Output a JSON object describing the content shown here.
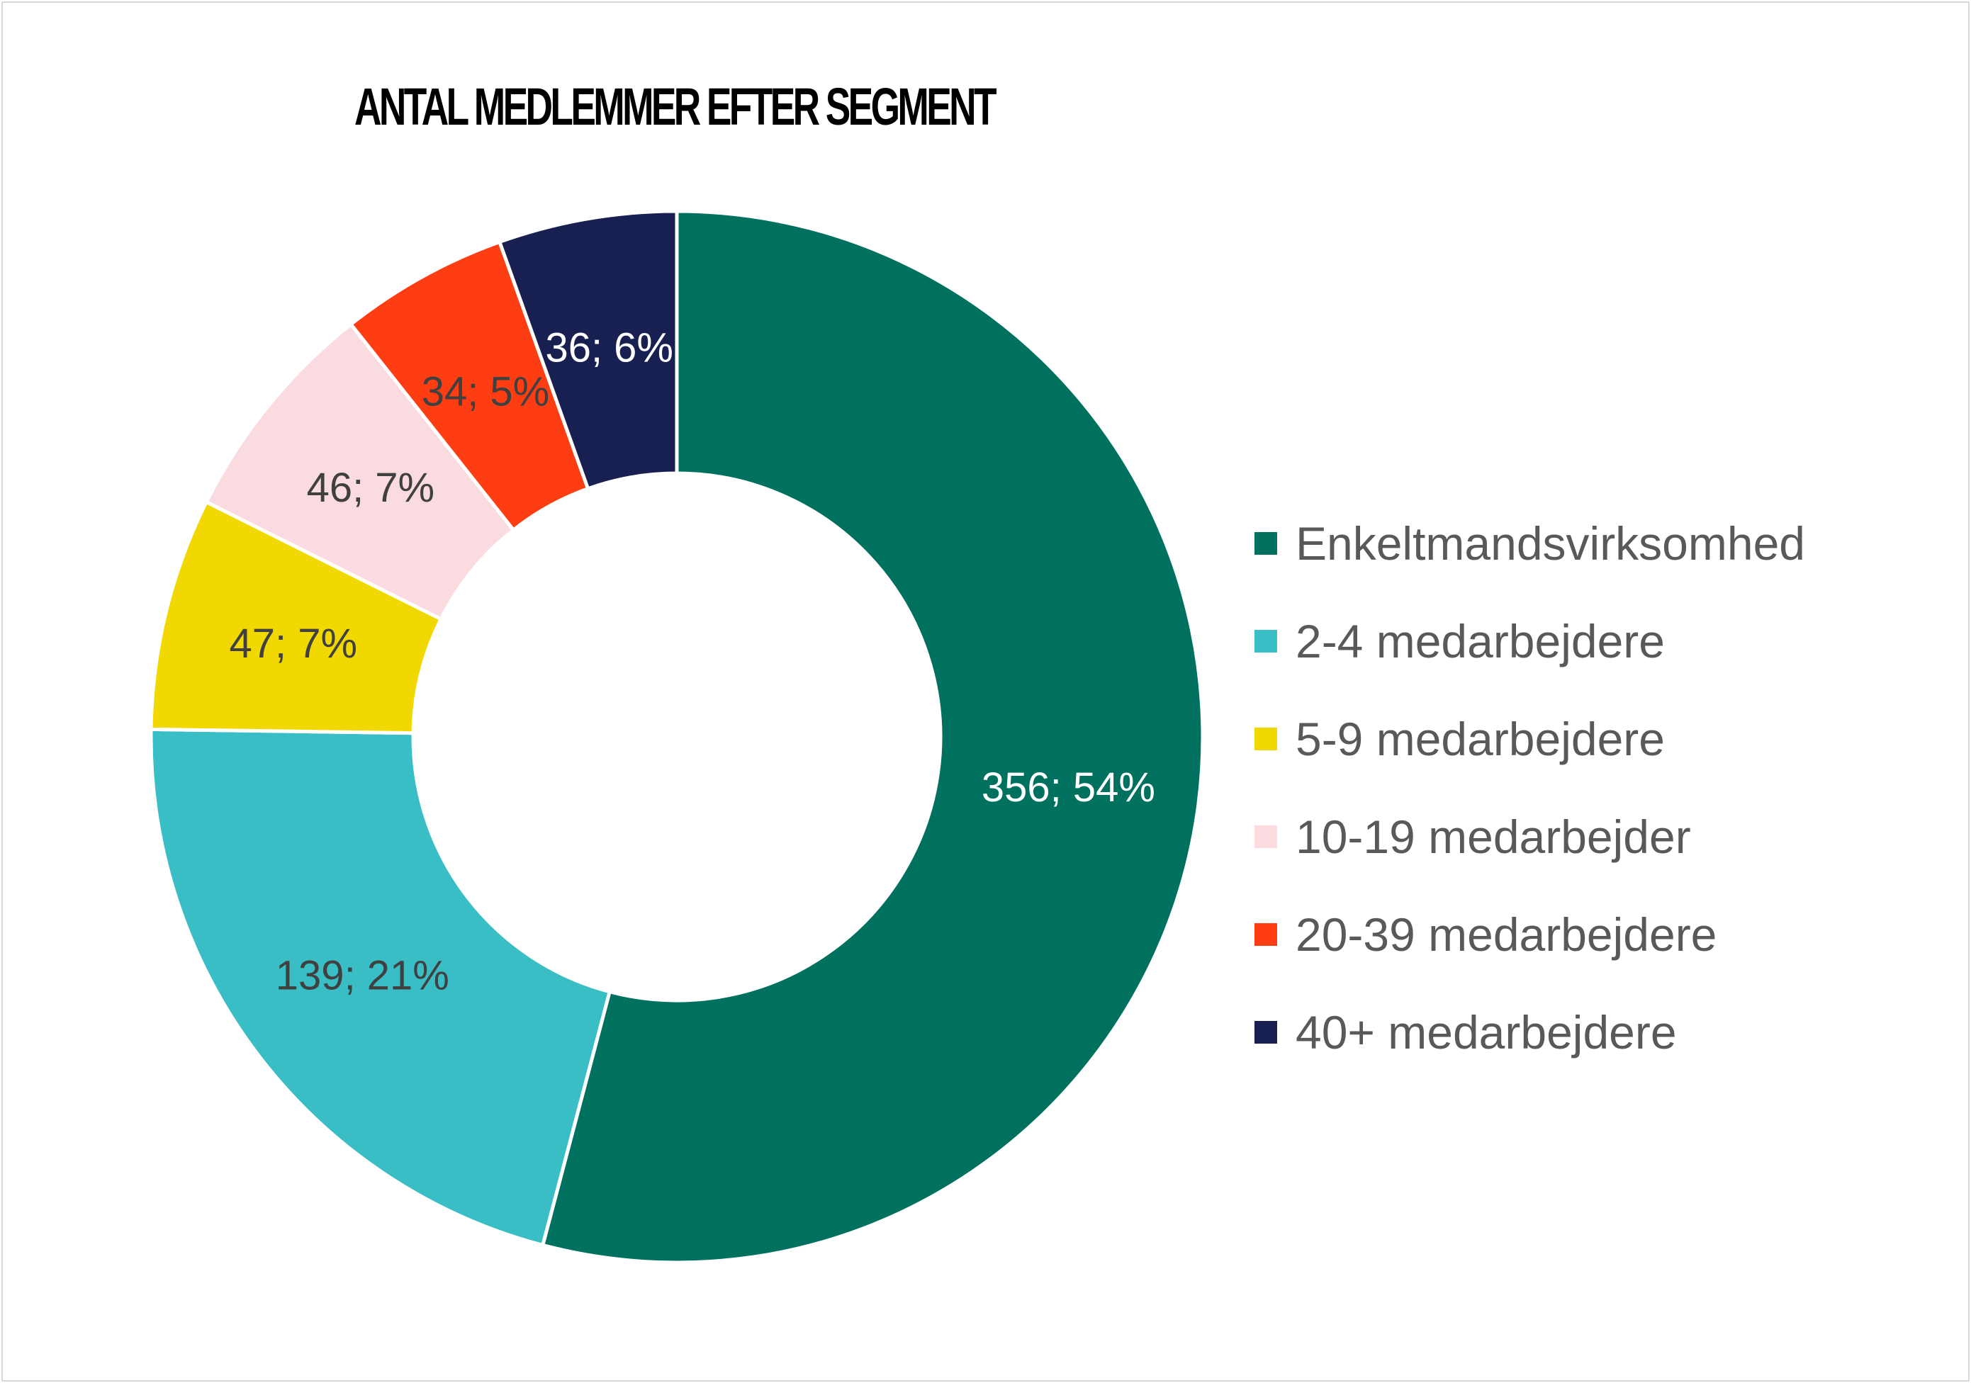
{
  "chart_data": {
    "type": "pie",
    "title": "ANTAL MEDLEMMER EFTER SEGMENT",
    "donut": true,
    "legend_position": "right",
    "slices": [
      {
        "name": "Enkeltmandsvirksomhed",
        "value": 356,
        "percent": 54,
        "label": "356; 54%",
        "color": "#00705f",
        "label_color": "#ffffff"
      },
      {
        "name": "2-4 medarbejdere",
        "value": 139,
        "percent": 21,
        "label": "139; 21%",
        "color": "#3abec5",
        "label_color": "#404040"
      },
      {
        "name": "5-9 medarbejdere",
        "value": 47,
        "percent": 7,
        "label": "47; 7%",
        "color": "#f0d800",
        "label_color": "#404040"
      },
      {
        "name": "10-19 medarbejder",
        "value": 46,
        "percent": 7,
        "label": "46; 7%",
        "color": "#fadbe0",
        "label_color": "#404040"
      },
      {
        "name": "20-39 medarbejdere",
        "value": 34,
        "percent": 5,
        "label": "34; 5%",
        "color": "#ff3d12",
        "label_color": "#404040"
      },
      {
        "name": "40+ medarbejdere",
        "value": 36,
        "percent": 6,
        "label": "36; 6%",
        "color": "#182052",
        "label_color": "#ffffff"
      }
    ]
  }
}
